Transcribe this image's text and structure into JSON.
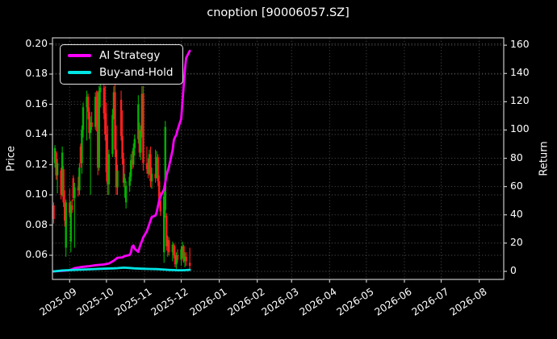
{
  "title": "cnoption [90006057.SZ]",
  "legend": {
    "items": [
      {
        "label": "AI Strategy",
        "color": "#ff00ff"
      },
      {
        "label": "Buy-and-Hold",
        "color": "#00e5e5"
      }
    ]
  },
  "chart_data": {
    "type": "candlestick",
    "title": "cnoption [90006057.SZ]",
    "xlabel": "",
    "ylabel_left": "Price",
    "ylabel_right": "Return",
    "grid": true,
    "legend_position": "upper-left",
    "colors": {
      "up": "#00b300",
      "down": "#ff1f1f",
      "ai_line": "#ff00ff",
      "bh_line": "#00e5e5",
      "grid": "#4a4a4a",
      "spine": "#c9c9c9",
      "background": "#000000",
      "text": "#ffffff"
    },
    "price_axis": {
      "label": "Price",
      "min": 0.044,
      "max": 0.204,
      "ticks": [
        0.06,
        0.08,
        0.1,
        0.12,
        0.14,
        0.16,
        0.18,
        0.2
      ],
      "tick_labels": [
        "0.06",
        "0.08",
        "0.10",
        "0.12",
        "0.14",
        "0.16",
        "0.18",
        "0.20"
      ]
    },
    "return_axis": {
      "label": "Return",
      "min": -5.7,
      "max": 165.2,
      "ticks": [
        0,
        20,
        40,
        60,
        80,
        100,
        120,
        140,
        160
      ],
      "tick_labels": [
        "0",
        "20",
        "40",
        "60",
        "80",
        "100",
        "120",
        "140",
        "160"
      ]
    },
    "date_axis": {
      "min": "2025-08-18",
      "max": "2026-08-21",
      "ticks": [
        {
          "label": "2025-09",
          "date": "2025-09-01"
        },
        {
          "label": "2025-10",
          "date": "2025-10-01"
        },
        {
          "label": "2025-11",
          "date": "2025-11-01"
        },
        {
          "label": "2025-12",
          "date": "2025-12-01"
        },
        {
          "label": "2026-01",
          "date": "2026-01-01"
        },
        {
          "label": "2026-02",
          "date": "2026-02-01"
        },
        {
          "label": "2026-03",
          "date": "2026-03-01"
        },
        {
          "label": "2026-04",
          "date": "2026-04-01"
        },
        {
          "label": "2026-05",
          "date": "2026-05-01"
        },
        {
          "label": "2026-06",
          "date": "2026-06-01"
        },
        {
          "label": "2026-07",
          "date": "2026-07-01"
        },
        {
          "label": "2026-08",
          "date": "2026-08-01"
        }
      ]
    },
    "candles": [
      [
        "2025-08-19",
        0.093,
        0.095,
        0.081,
        0.084
      ],
      [
        "2025-08-20",
        0.121,
        0.133,
        0.118,
        0.131
      ],
      [
        "2025-08-21",
        0.128,
        0.129,
        0.11,
        0.113
      ],
      [
        "2025-08-22",
        0.113,
        0.124,
        0.101,
        0.121
      ],
      [
        "2025-08-25",
        0.116,
        0.118,
        0.097,
        0.1
      ],
      [
        "2025-08-26",
        0.1,
        0.132,
        0.099,
        0.128
      ],
      [
        "2025-08-27",
        0.117,
        0.119,
        0.092,
        0.095
      ],
      [
        "2025-08-28",
        0.095,
        0.103,
        0.079,
        0.083
      ],
      [
        "2025-08-29",
        0.065,
        0.097,
        0.059,
        0.095
      ],
      [
        "2025-09-01",
        0.095,
        0.104,
        0.085,
        0.088
      ],
      [
        "2025-09-02",
        0.069,
        0.096,
        0.062,
        0.093
      ],
      [
        "2025-09-03",
        0.093,
        0.097,
        0.088,
        0.09
      ],
      [
        "2025-09-04",
        0.111,
        0.113,
        0.096,
        0.098
      ],
      [
        "2025-09-05",
        0.098,
        0.108,
        0.065,
        0.105
      ],
      [
        "2025-09-08",
        0.105,
        0.112,
        0.099,
        0.103
      ],
      [
        "2025-09-09",
        0.103,
        0.121,
        0.1,
        0.118
      ],
      [
        "2025-09-10",
        0.132,
        0.134,
        0.118,
        0.121
      ],
      [
        "2025-09-11",
        0.121,
        0.146,
        0.114,
        0.143
      ],
      [
        "2025-09-12",
        0.143,
        0.161,
        0.138,
        0.158
      ],
      [
        "2025-09-15",
        0.158,
        0.169,
        0.136,
        0.165
      ],
      [
        "2025-09-16",
        0.165,
        0.167,
        0.15,
        0.155
      ],
      [
        "2025-09-17",
        0.155,
        0.158,
        0.137,
        0.141
      ],
      [
        "2025-09-18",
        0.141,
        0.152,
        0.1,
        0.148
      ],
      [
        "2025-09-19",
        0.148,
        0.155,
        0.143,
        0.145
      ],
      [
        "2025-09-22",
        0.145,
        0.168,
        0.143,
        0.165
      ],
      [
        "2025-09-23",
        0.165,
        0.169,
        0.142,
        0.147
      ],
      [
        "2025-09-24",
        0.168,
        0.169,
        0.113,
        0.118
      ],
      [
        "2025-09-25",
        0.118,
        0.172,
        0.116,
        0.168
      ],
      [
        "2025-09-26",
        0.168,
        0.174,
        0.158,
        0.171
      ],
      [
        "2025-09-29",
        0.171,
        0.173,
        0.15,
        0.154
      ],
      [
        "2025-09-30",
        0.154,
        0.172,
        0.136,
        0.14
      ],
      [
        "2025-10-01",
        0.14,
        0.161,
        0.109,
        0.115
      ],
      [
        "2025-10-02",
        0.115,
        0.146,
        0.1,
        0.107
      ],
      [
        "2025-10-03",
        0.107,
        0.13,
        0.1,
        0.127
      ],
      [
        "2025-10-06",
        0.127,
        0.157,
        0.125,
        0.153
      ],
      [
        "2025-10-07",
        0.153,
        0.172,
        0.15,
        0.168
      ],
      [
        "2025-10-08",
        0.168,
        0.173,
        0.125,
        0.13
      ],
      [
        "2025-10-09",
        0.13,
        0.146,
        0.1,
        0.105
      ],
      [
        "2025-10-10",
        0.105,
        0.12,
        0.1,
        0.116
      ],
      [
        "2025-10-13",
        0.163,
        0.169,
        0.136,
        0.139
      ],
      [
        "2025-10-14",
        0.139,
        0.156,
        0.12,
        0.124
      ],
      [
        "2025-10-15",
        0.124,
        0.128,
        0.105,
        0.108
      ],
      [
        "2025-10-16",
        0.108,
        0.114,
        0.098,
        0.111
      ],
      [
        "2025-10-17",
        0.095,
        0.109,
        0.091,
        0.106
      ],
      [
        "2025-10-20",
        0.106,
        0.115,
        0.102,
        0.112
      ],
      [
        "2025-10-21",
        0.112,
        0.127,
        0.109,
        0.123
      ],
      [
        "2025-10-22",
        0.123,
        0.129,
        0.117,
        0.12
      ],
      [
        "2025-10-23",
        0.12,
        0.134,
        0.118,
        0.131
      ],
      [
        "2025-10-24",
        0.131,
        0.14,
        0.126,
        0.137
      ],
      [
        "2025-10-27",
        0.137,
        0.166,
        0.134,
        0.16
      ],
      [
        "2025-10-28",
        0.143,
        0.148,
        0.125,
        0.128
      ],
      [
        "2025-10-29",
        0.128,
        0.146,
        0.123,
        0.142
      ],
      [
        "2025-10-30",
        0.142,
        0.172,
        0.138,
        0.167
      ],
      [
        "2025-10-31",
        0.167,
        0.172,
        0.116,
        0.121
      ],
      [
        "2025-11-03",
        0.121,
        0.132,
        0.114,
        0.117
      ],
      [
        "2025-11-04",
        0.117,
        0.124,
        0.111,
        0.114
      ],
      [
        "2025-11-05",
        0.114,
        0.13,
        0.113,
        0.127
      ],
      [
        "2025-11-06",
        0.127,
        0.132,
        0.105,
        0.109
      ],
      [
        "2025-11-07",
        0.109,
        0.118,
        0.104,
        0.114
      ],
      [
        "2025-11-10",
        0.114,
        0.13,
        0.108,
        0.111
      ],
      [
        "2025-11-11",
        0.111,
        0.129,
        0.111,
        0.125
      ],
      [
        "2025-11-12",
        0.125,
        0.127,
        0.106,
        0.109
      ],
      [
        "2025-11-13",
        0.109,
        0.113,
        0.093,
        0.096
      ],
      [
        "2025-11-14",
        0.096,
        0.102,
        0.086,
        0.089
      ],
      [
        "2025-11-17",
        0.062,
        0.103,
        0.055,
        0.099
      ],
      [
        "2025-11-18",
        0.09,
        0.149,
        0.085,
        0.145
      ],
      [
        "2025-11-19",
        0.086,
        0.088,
        0.063,
        0.066
      ],
      [
        "2025-11-20",
        0.066,
        0.073,
        0.059,
        0.07
      ],
      [
        "2025-11-21",
        0.07,
        0.072,
        0.06,
        0.062
      ],
      [
        "2025-11-24",
        0.062,
        0.069,
        0.056,
        0.067
      ],
      [
        "2025-11-25",
        0.067,
        0.068,
        0.058,
        0.06
      ],
      [
        "2025-11-26",
        0.06,
        0.066,
        0.052,
        0.054
      ],
      [
        "2025-11-27",
        0.054,
        0.062,
        0.051,
        0.06
      ],
      [
        "2025-11-28",
        0.06,
        0.064,
        0.055,
        0.057
      ],
      [
        "2025-12-01",
        0.057,
        0.066,
        0.053,
        0.064
      ],
      [
        "2025-12-02",
        0.064,
        0.069,
        0.058,
        0.066
      ],
      [
        "2025-12-03",
        0.066,
        0.067,
        0.055,
        0.056
      ],
      [
        "2025-12-04",
        0.056,
        0.062,
        0.052,
        0.059
      ],
      [
        "2025-12-05",
        0.059,
        0.062,
        0.053,
        0.056
      ],
      [
        "2025-12-08",
        0.055,
        0.065,
        0.051,
        0.053
      ]
    ],
    "series": [
      {
        "name": "AI Strategy",
        "axis": "return",
        "color": "#ff00ff",
        "points": [
          [
            "2025-08-19",
            0
          ],
          [
            "2025-08-25",
            0.3
          ],
          [
            "2025-09-01",
            0.8
          ],
          [
            "2025-09-05",
            2.3
          ],
          [
            "2025-09-10",
            3.0
          ],
          [
            "2025-09-16",
            3.6
          ],
          [
            "2025-09-22",
            4.3
          ],
          [
            "2025-09-29",
            4.9
          ],
          [
            "2025-10-03",
            5.6
          ],
          [
            "2025-10-07",
            7.6
          ],
          [
            "2025-10-10",
            9.6
          ],
          [
            "2025-10-14",
            9.9
          ],
          [
            "2025-10-16",
            10.8
          ],
          [
            "2025-10-20",
            11.6
          ],
          [
            "2025-10-21",
            13.5
          ],
          [
            "2025-10-22",
            17.5
          ],
          [
            "2025-10-23",
            18.3
          ],
          [
            "2025-10-24",
            16.0
          ],
          [
            "2025-10-27",
            13.8
          ],
          [
            "2025-10-28",
            17.0
          ],
          [
            "2025-10-29",
            19.5
          ],
          [
            "2025-10-30",
            21.5
          ],
          [
            "2025-10-31",
            24.0
          ],
          [
            "2025-11-03",
            28.5
          ],
          [
            "2025-11-04",
            31.0
          ],
          [
            "2025-11-05",
            33.5
          ],
          [
            "2025-11-06",
            36.0
          ],
          [
            "2025-11-07",
            38.5
          ],
          [
            "2025-11-10",
            39.5
          ],
          [
            "2025-11-11",
            42.0
          ],
          [
            "2025-11-12",
            46.0
          ],
          [
            "2025-11-13",
            50.0
          ],
          [
            "2025-11-14",
            53.0
          ],
          [
            "2025-11-17",
            58.0
          ],
          [
            "2025-11-18",
            63.0
          ],
          [
            "2025-11-19",
            68.0
          ],
          [
            "2025-11-20",
            71.0
          ],
          [
            "2025-11-21",
            74.0
          ],
          [
            "2025-11-24",
            86.0
          ],
          [
            "2025-11-25",
            93.0
          ],
          [
            "2025-11-26",
            95.0
          ],
          [
            "2025-11-27",
            96.5
          ],
          [
            "2025-11-28",
            100.0
          ],
          [
            "2025-12-01",
            108.0
          ],
          [
            "2025-12-02",
            120.0
          ],
          [
            "2025-12-03",
            131.0
          ],
          [
            "2025-12-04",
            143.0
          ],
          [
            "2025-12-05",
            151.0
          ],
          [
            "2025-12-08",
            156.0
          ]
        ]
      },
      {
        "name": "Buy-and-Hold",
        "axis": "return",
        "color": "#00e5e5",
        "points": [
          [
            "2025-08-19",
            0
          ],
          [
            "2025-08-26",
            0.6
          ],
          [
            "2025-09-02",
            0.9
          ],
          [
            "2025-09-10",
            1.2
          ],
          [
            "2025-09-18",
            1.5
          ],
          [
            "2025-09-26",
            1.8
          ],
          [
            "2025-10-06",
            2.1
          ],
          [
            "2025-10-10",
            2.3
          ],
          [
            "2025-10-15",
            2.6
          ],
          [
            "2025-10-20",
            2.4
          ],
          [
            "2025-10-24",
            2.1
          ],
          [
            "2025-10-30",
            1.9
          ],
          [
            "2025-11-05",
            1.7
          ],
          [
            "2025-11-11",
            1.6
          ],
          [
            "2025-11-14",
            1.4
          ],
          [
            "2025-11-18",
            1.2
          ],
          [
            "2025-11-21",
            1.0
          ],
          [
            "2025-11-25",
            0.9
          ],
          [
            "2025-11-28",
            0.8
          ],
          [
            "2025-12-02",
            0.8
          ],
          [
            "2025-12-05",
            0.9
          ],
          [
            "2025-12-08",
            1.1
          ]
        ]
      }
    ]
  }
}
